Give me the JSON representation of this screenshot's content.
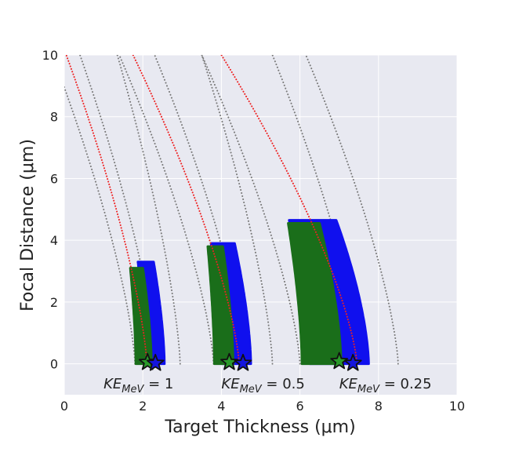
{
  "chart_data": {
    "type": "scatter",
    "xlabel": "Target Thickness (μm)",
    "ylabel": "Focal Distance (μm)",
    "xlim": [
      0,
      10
    ],
    "ylim": [
      -1,
      10
    ],
    "xticks": [
      "0",
      "2",
      "4",
      "6",
      "8",
      "10"
    ],
    "yticks": [
      "0",
      "2",
      "4",
      "6",
      "8",
      "10"
    ],
    "grid": true,
    "background": "#e8e9f1",
    "groups": [
      {
        "label": "KE_MeV = 1",
        "label_main": "KE",
        "label_sub": "MeV",
        "label_value": " = 1",
        "label_pos": [
          1.0,
          -0.65
        ],
        "gray_left": {
          "x0": -0.1,
          "x1": 1.8,
          "ymax": 9.3
        },
        "red": {
          "x0": 0.05,
          "x1": 2.1,
          "ymax": 10.0
        },
        "gray_mid": {
          "x0": 0.4,
          "x1": 2.35,
          "ymax": 10.0
        },
        "gray_right": {
          "x0": 1.35,
          "x1": 2.95,
          "ymax": 10.0
        },
        "green_band": {
          "x_inner": 1.82,
          "x_outer": 2.22,
          "y_top": 3.1
        },
        "blue_band": {
          "x_inner": 2.05,
          "x_outer": 2.55,
          "y_top": 3.3
        },
        "green_star": [
          2.12,
          0.05
        ],
        "blue_star": [
          2.32,
          0.02
        ]
      },
      {
        "label": "KE_MeV = 0.5",
        "label_main": "KE",
        "label_sub": "MeV",
        "label_value": " = 0.5",
        "label_pos": [
          4.0,
          -0.65
        ],
        "gray_left": {
          "x0": 1.4,
          "x1": 3.8,
          "ymax": 10.0
        },
        "red": {
          "x0": 1.75,
          "x1": 4.45,
          "ymax": 10.0
        },
        "gray_mid": {
          "x0": 2.3,
          "x1": 4.6,
          "ymax": 10.0
        },
        "gray_right": {
          "x0": 3.5,
          "x1": 5.3,
          "ymax": 10.0
        },
        "green_band": {
          "x_inner": 3.82,
          "x_outer": 4.3,
          "y_top": 3.8
        },
        "blue_band": {
          "x_inner": 4.0,
          "x_outer": 4.75,
          "y_top": 3.9
        },
        "green_star": [
          4.2,
          0.05
        ],
        "blue_star": [
          4.55,
          0.02
        ]
      },
      {
        "label": "KE_MeV = 0.25",
        "label_main": "KE",
        "label_sub": "MeV",
        "label_value": " = 0.25",
        "label_pos": [
          7.0,
          -0.65
        ],
        "gray_left": {
          "x0": 3.5,
          "x1": 6.0,
          "ymax": 10.0
        },
        "red": {
          "x0": 4.0,
          "x1": 7.45,
          "ymax": 10.0
        },
        "gray_mid": {
          "x0": 5.3,
          "x1": 7.55,
          "ymax": 10.0
        },
        "gray_right": {
          "x0": 6.15,
          "x1": 8.5,
          "ymax": 10.0
        },
        "green_band": {
          "x_inner": 6.05,
          "x_outer": 7.05,
          "y_top": 4.55
        },
        "blue_band": {
          "x_inner": 6.25,
          "x_outer": 7.75,
          "y_top": 4.65
        },
        "green_star": [
          7.0,
          0.08
        ],
        "blue_star": [
          7.35,
          0.02
        ]
      }
    ],
    "colors": {
      "gray": "#7a7a7a",
      "red": "#ee2222",
      "green": "#1a6e1a",
      "blue": "#1010ee",
      "star_green": "#2a9a2a",
      "star_blue": "#1515dd",
      "star_edge": "#111111"
    }
  }
}
